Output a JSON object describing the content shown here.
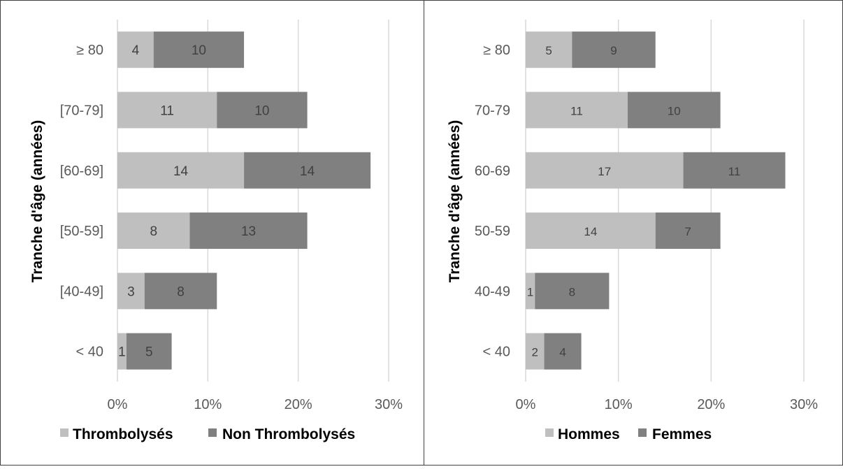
{
  "colors": {
    "light": "#bfbfbf",
    "dark": "#808080",
    "grid": "#d9d9d9",
    "border": "#404040",
    "tick": "#595959"
  },
  "chart_data": [
    {
      "type": "bar",
      "orientation": "horizontal",
      "stacked": true,
      "ylabel": "Tranche d'âge (années)",
      "xlabel": "",
      "categories": [
        "≥ 80",
        "[70-79]",
        "[60-69]",
        "[50-59]",
        "[40-49]",
        "< 40"
      ],
      "series": [
        {
          "name": "Thrombolysés",
          "values": [
            4,
            11,
            14,
            8,
            3,
            1
          ],
          "labels": [
            "4",
            "11",
            "14",
            "8",
            "3",
            "1"
          ]
        },
        {
          "name": "Non Thrombolysés",
          "values": [
            10,
            10,
            14,
            13,
            8,
            5
          ],
          "labels": [
            "10",
            "10",
            "14",
            "13",
            "8",
            "5"
          ]
        }
      ],
      "xlim": [
        0,
        30
      ],
      "xticks": [
        "0%",
        "10%",
        "20%",
        "30%"
      ],
      "grid": true,
      "legend_position": "bottom"
    },
    {
      "type": "bar",
      "orientation": "horizontal",
      "stacked": true,
      "ylabel": "Tranche d'âge (années)",
      "xlabel": "",
      "categories": [
        "≥ 80",
        "70-79",
        "60-69",
        "50-59",
        "40-49",
        "< 40"
      ],
      "series": [
        {
          "name": "Hommes",
          "values": [
            5,
            11,
            17,
            14,
            1,
            2
          ],
          "labels": [
            "5",
            "11",
            "17",
            "14",
            "1",
            "2"
          ]
        },
        {
          "name": "Femmes",
          "values": [
            9,
            10,
            11,
            7,
            8,
            4
          ],
          "labels": [
            "9",
            "10",
            "11",
            "7",
            "8",
            "4"
          ]
        }
      ],
      "xlim": [
        0,
        30
      ],
      "xticks": [
        "0%",
        "10%",
        "20%",
        "30%"
      ],
      "grid": true,
      "legend_position": "bottom"
    }
  ]
}
